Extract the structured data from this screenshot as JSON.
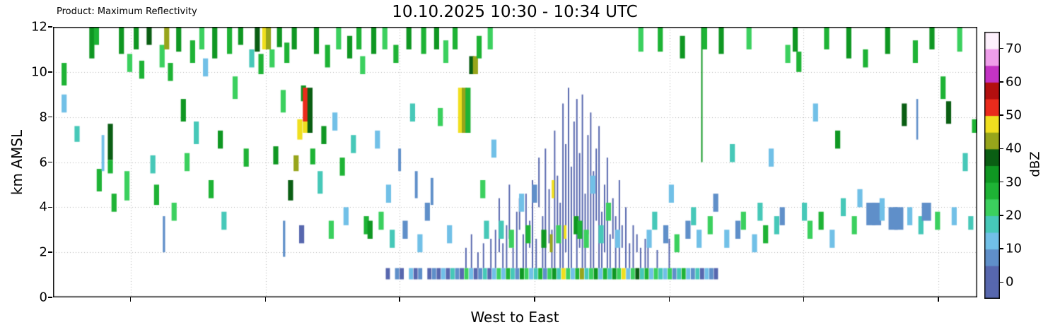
{
  "header": {
    "product_label": "Product: Maximum Reflectivity",
    "title": "10.10.2025 10:30 - 10:34 UTC"
  },
  "chart_data": {
    "type": "heatmap",
    "title": "10.10.2025 10:30 - 10:34 UTC",
    "product": "Product: Maximum Reflectivity",
    "xlabel": "West to East",
    "ylabel": "km AMSL",
    "ylim": [
      0,
      12
    ],
    "yticks": [
      0,
      2,
      4,
      6,
      8,
      10,
      12
    ],
    "grid": true,
    "x_gridlines_pct": [
      8.4,
      23.0,
      37.5,
      52.1,
      66.7,
      81.2,
      95.8
    ],
    "colorbar": {
      "label": "dBZ",
      "ticks": [
        0,
        10,
        20,
        30,
        40,
        50,
        60,
        70
      ],
      "range": [
        -5,
        75
      ]
    },
    "palette": [
      [
        0,
        "#5767ae"
      ],
      [
        5,
        "#5f8fc9"
      ],
      [
        10,
        "#71c0e7"
      ],
      [
        15,
        "#46c8b8"
      ],
      [
        20,
        "#3bd05e"
      ],
      [
        25,
        "#1eb335"
      ],
      [
        30,
        "#0f9722"
      ],
      [
        35,
        "#0a5e13"
      ],
      [
        40,
        "#97a51b"
      ],
      [
        45,
        "#f0df1f"
      ],
      [
        50,
        "#ea2b1c"
      ],
      [
        55,
        "#b30f0f"
      ],
      [
        60,
        "#c433c4"
      ],
      [
        65,
        "#ef9eea"
      ],
      [
        70,
        "#fdf0fc"
      ]
    ],
    "bars": [
      [
        1.2,
        9.4,
        10.4,
        25
      ],
      [
        1.2,
        8.2,
        9.0,
        10
      ],
      [
        2.6,
        6.9,
        7.6,
        15
      ],
      [
        4.2,
        10.6,
        12,
        30
      ],
      [
        4.7,
        11.2,
        12,
        25
      ],
      [
        5.0,
        4.7,
        5.7,
        25
      ],
      [
        5.4,
        5.6,
        7.2,
        10,
        0.3
      ],
      [
        6.2,
        6.1,
        7.7,
        35
      ],
      [
        6.2,
        5.5,
        6.1,
        25
      ],
      [
        6.6,
        3.8,
        4.6,
        25
      ],
      [
        7.4,
        10.8,
        12,
        30
      ],
      [
        8.0,
        4.3,
        5.6,
        20
      ],
      [
        8.3,
        10.0,
        10.8,
        20
      ],
      [
        9.0,
        11.0,
        12,
        30
      ],
      [
        9.6,
        9.7,
        10.5,
        25
      ],
      [
        10.4,
        11.2,
        12,
        35
      ],
      [
        10.8,
        5.5,
        6.3,
        15
      ],
      [
        11.2,
        4.1,
        5.0,
        25
      ],
      [
        11.8,
        10.2,
        11.2,
        20
      ],
      [
        12.0,
        2.0,
        3.6,
        5,
        0.25
      ],
      [
        12.3,
        11.0,
        12,
        40
      ],
      [
        12.7,
        9.6,
        10.4,
        25
      ],
      [
        13.1,
        3.4,
        4.2,
        20
      ],
      [
        13.6,
        10.9,
        12,
        30
      ],
      [
        14.1,
        7.8,
        8.8,
        30
      ],
      [
        14.5,
        5.6,
        6.4,
        20
      ],
      [
        15.1,
        10.4,
        11.4,
        25
      ],
      [
        15.5,
        6.8,
        7.8,
        15
      ],
      [
        16.1,
        11.0,
        12,
        20
      ],
      [
        16.5,
        9.8,
        10.6,
        10
      ],
      [
        17.1,
        4.4,
        5.2,
        25
      ],
      [
        17.5,
        10.6,
        12,
        30
      ],
      [
        18.1,
        6.6,
        7.4,
        30
      ],
      [
        18.5,
        3.0,
        3.8,
        15
      ],
      [
        19.1,
        10.8,
        12,
        25
      ],
      [
        19.7,
        8.8,
        9.8,
        20
      ],
      [
        20.3,
        11.2,
        12,
        30
      ],
      [
        20.9,
        5.8,
        6.6,
        25
      ],
      [
        21.5,
        10.2,
        11.0,
        15
      ],
      [
        22.1,
        10.9,
        12,
        35
      ],
      [
        22.5,
        9.9,
        10.8,
        25
      ],
      [
        22.9,
        11.0,
        12,
        45
      ],
      [
        23.3,
        11.0,
        12,
        40
      ],
      [
        23.7,
        10.2,
        11.0,
        20
      ],
      [
        24.1,
        5.9,
        6.7,
        30
      ],
      [
        24.5,
        11.1,
        12,
        30
      ],
      [
        24.9,
        8.2,
        9.2,
        20
      ],
      [
        25.0,
        1.8,
        3.4,
        5,
        0.25
      ],
      [
        25.3,
        10.4,
        11.3,
        25
      ],
      [
        25.7,
        4.3,
        5.2,
        35
      ],
      [
        26.1,
        11.0,
        12,
        30
      ],
      [
        26.3,
        5.6,
        6.3,
        40
      ],
      [
        26.7,
        7.0,
        7.9,
        45
      ],
      [
        26.9,
        2.4,
        3.2,
        0
      ],
      [
        27.1,
        8.7,
        9.4,
        30
      ],
      [
        27.3,
        7.8,
        9.3,
        52
      ],
      [
        27.3,
        7.3,
        7.8,
        45
      ],
      [
        27.8,
        7.3,
        9.3,
        35
      ],
      [
        28.1,
        5.9,
        6.6,
        25
      ],
      [
        28.5,
        10.8,
        12,
        30
      ],
      [
        28.9,
        4.6,
        5.6,
        15
      ],
      [
        29.3,
        6.8,
        7.6,
        30
      ],
      [
        29.7,
        10.2,
        11.2,
        25
      ],
      [
        30.1,
        2.6,
        3.4,
        20
      ],
      [
        30.5,
        7.4,
        8.2,
        10
      ],
      [
        30.9,
        11.0,
        12,
        20
      ],
      [
        31.3,
        5.4,
        6.2,
        25
      ],
      [
        31.7,
        3.2,
        4.0,
        10
      ],
      [
        32.1,
        10.6,
        11.6,
        30
      ],
      [
        32.5,
        6.4,
        7.2,
        15
      ],
      [
        33.1,
        11.0,
        12,
        25
      ],
      [
        33.5,
        9.9,
        10.7,
        20
      ],
      [
        33.9,
        2.8,
        3.6,
        25
      ],
      [
        34.3,
        2.6,
        3.4,
        30
      ],
      [
        34.7,
        10.8,
        12,
        30
      ],
      [
        35.1,
        6.6,
        7.4,
        10
      ],
      [
        35.5,
        3.0,
        3.8,
        20
      ],
      [
        35.9,
        11.0,
        12,
        20
      ],
      [
        36.3,
        4.2,
        5.0,
        10
      ],
      [
        36.7,
        2.2,
        3.0,
        15
      ],
      [
        37.1,
        10.4,
        11.2,
        25
      ],
      [
        37.5,
        5.6,
        6.6,
        5,
        0.3
      ],
      [
        38.1,
        2.6,
        3.4,
        5
      ],
      [
        38.5,
        11.0,
        12,
        30
      ],
      [
        38.9,
        7.8,
        8.6,
        15
      ],
      [
        39.3,
        4.4,
        5.6,
        5,
        0.3
      ],
      [
        39.7,
        2.0,
        2.8,
        10
      ],
      [
        40.1,
        10.8,
        12,
        25
      ],
      [
        40.5,
        3.4,
        4.2,
        5
      ],
      [
        41.0,
        4.1,
        5.3,
        5,
        0.3
      ],
      [
        41.5,
        11.0,
        12,
        30
      ],
      [
        41.9,
        7.6,
        8.4,
        20
      ],
      [
        42.5,
        10.4,
        11.4,
        20
      ],
      [
        42.9,
        2.4,
        3.2,
        10
      ],
      [
        43.5,
        11.0,
        12,
        25
      ],
      [
        44.1,
        7.3,
        9.3,
        45
      ],
      [
        44.5,
        7.3,
        9.3,
        40
      ],
      [
        44.9,
        7.3,
        9.3,
        25
      ],
      [
        45.3,
        9.9,
        10.7,
        35
      ],
      [
        45.7,
        9.9,
        10.7,
        40
      ],
      [
        46.1,
        10.6,
        11.6,
        25
      ],
      [
        46.5,
        4.4,
        5.2,
        20
      ],
      [
        46.9,
        2.6,
        3.4,
        15
      ],
      [
        47.3,
        11.0,
        12,
        20
      ],
      [
        47.7,
        6.2,
        7.0,
        10
      ],
      [
        48.5,
        2.6,
        3.4,
        15
      ],
      [
        49.6,
        2.2,
        3.0,
        20
      ],
      [
        50.7,
        3.8,
        4.6,
        10
      ],
      [
        51.4,
        2.4,
        3.2,
        25
      ],
      [
        52.1,
        4.2,
        5.0,
        5
      ],
      [
        53.1,
        2.2,
        3.0,
        30
      ],
      [
        53.9,
        2.0,
        2.8,
        40,
        0.3
      ],
      [
        54.1,
        4.4,
        5.2,
        45,
        0.3
      ],
      [
        54.7,
        2.4,
        3.2,
        20
      ],
      [
        55.4,
        2.6,
        3.2,
        45,
        0.3
      ],
      [
        56.6,
        2.8,
        3.6,
        30
      ],
      [
        57.0,
        2.6,
        3.4,
        25
      ],
      [
        57.7,
        2.2,
        3.0,
        20
      ],
      [
        58.4,
        4.6,
        5.4,
        10
      ],
      [
        59.3,
        2.4,
        3.2,
        15
      ],
      [
        60.1,
        3.4,
        4.2,
        20
      ],
      [
        61.1,
        2.2,
        3.0,
        10
      ],
      [
        63.6,
        10.9,
        12,
        20
      ],
      [
        64.5,
        2.2,
        3.0,
        10
      ],
      [
        65.1,
        3.0,
        3.8,
        15
      ],
      [
        65.7,
        10.9,
        12,
        25
      ],
      [
        66.3,
        2.4,
        3.2,
        5
      ],
      [
        66.9,
        4.2,
        5.0,
        10
      ],
      [
        67.5,
        2.0,
        2.8,
        20
      ],
      [
        68.1,
        10.6,
        11.6,
        30
      ],
      [
        68.7,
        2.6,
        3.4,
        5
      ],
      [
        69.3,
        3.2,
        4.0,
        15
      ],
      [
        69.9,
        2.2,
        3.0,
        10
      ],
      [
        70.2,
        6.0,
        12,
        30,
        0.15
      ],
      [
        70.5,
        11.0,
        12,
        25
      ],
      [
        71.1,
        2.8,
        3.6,
        20
      ],
      [
        71.7,
        3.8,
        4.6,
        5
      ],
      [
        72.3,
        10.8,
        12,
        30
      ],
      [
        72.9,
        2.2,
        3.0,
        10
      ],
      [
        73.5,
        6.0,
        6.8,
        15
      ],
      [
        74.1,
        2.6,
        3.4,
        5
      ],
      [
        74.7,
        3.0,
        3.8,
        20
      ],
      [
        75.3,
        11.0,
        12,
        20
      ],
      [
        75.9,
        2.0,
        2.8,
        10
      ],
      [
        76.5,
        3.4,
        4.2,
        15
      ],
      [
        77.1,
        2.4,
        3.2,
        25
      ],
      [
        77.7,
        5.8,
        6.6,
        10
      ],
      [
        78.3,
        2.8,
        3.6,
        15
      ],
      [
        78.9,
        3.2,
        4.0,
        5
      ],
      [
        79.5,
        10.4,
        11.2,
        20
      ],
      [
        80.3,
        10.9,
        12,
        30
      ],
      [
        80.7,
        10.0,
        10.9,
        25
      ],
      [
        81.3,
        3.4,
        4.2,
        15
      ],
      [
        81.9,
        2.6,
        3.4,
        20
      ],
      [
        82.5,
        7.8,
        8.6,
        10
      ],
      [
        83.1,
        3.0,
        3.8,
        25
      ],
      [
        83.7,
        11.0,
        12,
        25
      ],
      [
        84.3,
        2.2,
        3.0,
        10
      ],
      [
        84.9,
        6.6,
        7.4,
        30
      ],
      [
        85.5,
        3.6,
        4.4,
        15
      ],
      [
        86.1,
        10.6,
        12,
        30
      ],
      [
        86.7,
        2.8,
        3.6,
        20
      ],
      [
        87.3,
        4.0,
        4.8,
        10
      ],
      [
        87.9,
        10.2,
        11.0,
        25
      ],
      [
        88.5,
        3.2,
        4.2,
        5,
        1.0
      ],
      [
        89.1,
        3.2,
        4.2,
        5,
        1.0
      ],
      [
        89.7,
        3.4,
        4.4,
        10
      ],
      [
        90.3,
        10.8,
        12,
        30
      ],
      [
        90.9,
        3.0,
        4.0,
        5,
        1.0
      ],
      [
        91.5,
        3.0,
        4.0,
        5,
        1.0
      ],
      [
        92.1,
        7.6,
        8.6,
        35
      ],
      [
        92.7,
        3.2,
        4.0,
        10
      ],
      [
        93.3,
        10.4,
        11.4,
        25
      ],
      [
        93.5,
        7.0,
        8.8,
        5,
        0.2
      ],
      [
        93.9,
        2.8,
        3.6,
        15
      ],
      [
        94.5,
        3.4,
        4.2,
        5,
        1.0
      ],
      [
        95.1,
        11.0,
        12,
        30
      ],
      [
        95.7,
        3.0,
        3.8,
        20
      ],
      [
        96.3,
        8.8,
        9.8,
        25
      ],
      [
        96.9,
        7.7,
        8.7,
        35
      ],
      [
        97.5,
        3.2,
        4.0,
        10
      ],
      [
        98.1,
        10.9,
        12,
        20
      ],
      [
        98.7,
        5.6,
        6.4,
        15
      ],
      [
        99.3,
        3.0,
        3.6,
        15
      ],
      [
        99.7,
        7.3,
        7.9,
        25
      ]
    ],
    "spikes": [
      [
        44.6,
        1.3,
        2.2
      ],
      [
        45.2,
        1.3,
        2.8
      ],
      [
        45.9,
        1.3,
        2.0
      ],
      [
        46.5,
        1.3,
        2.4
      ],
      [
        47.3,
        1.3,
        2.6
      ],
      [
        47.8,
        1.3,
        3.0
      ],
      [
        48.2,
        2.0,
        4.4
      ],
      [
        48.6,
        1.3,
        2.4
      ],
      [
        49.0,
        1.3,
        3.2
      ],
      [
        49.3,
        2.6,
        5.0
      ],
      [
        49.7,
        1.3,
        2.2
      ],
      [
        50.1,
        1.3,
        3.8
      ],
      [
        50.4,
        3.0,
        4.4
      ],
      [
        50.8,
        1.3,
        2.8
      ],
      [
        51.1,
        1.3,
        4.6
      ],
      [
        51.5,
        2.2,
        3.4
      ],
      [
        51.8,
        1.3,
        5.2
      ],
      [
        52.2,
        1.3,
        2.6
      ],
      [
        52.5,
        4.0,
        6.2
      ],
      [
        52.9,
        1.3,
        3.6
      ],
      [
        53.2,
        1.3,
        6.6
      ],
      [
        53.6,
        2.4,
        4.8
      ],
      [
        53.9,
        1.3,
        3.0
      ],
      [
        54.2,
        1.3,
        7.4
      ],
      [
        54.5,
        3.2,
        5.4
      ],
      [
        54.8,
        1.3,
        4.2
      ],
      [
        55.1,
        1.3,
        8.6
      ],
      [
        55.4,
        2.0,
        6.8
      ],
      [
        55.7,
        1.3,
        9.3
      ],
      [
        56.0,
        1.3,
        5.8
      ],
      [
        56.3,
        3.6,
        7.8
      ],
      [
        56.6,
        1.3,
        8.8
      ],
      [
        56.9,
        2.2,
        6.4
      ],
      [
        57.2,
        1.3,
        9.0
      ],
      [
        57.5,
        1.3,
        4.6
      ],
      [
        57.8,
        2.8,
        7.2
      ],
      [
        58.1,
        1.3,
        8.2
      ],
      [
        58.4,
        1.3,
        5.6
      ],
      [
        58.7,
        3.4,
        6.6
      ],
      [
        59.0,
        1.3,
        7.6
      ],
      [
        59.3,
        1.3,
        3.8
      ],
      [
        59.6,
        2.0,
        5.0
      ],
      [
        59.9,
        1.3,
        6.2
      ],
      [
        60.2,
        1.3,
        2.8
      ],
      [
        60.5,
        2.6,
        4.4
      ],
      [
        60.8,
        1.3,
        3.6
      ],
      [
        61.2,
        1.3,
        5.2
      ],
      [
        61.5,
        2.2,
        3.2
      ],
      [
        61.9,
        1.3,
        4.0
      ],
      [
        62.3,
        1.3,
        2.4
      ],
      [
        62.7,
        1.3,
        3.2
      ],
      [
        63.1,
        2.0,
        2.8
      ],
      [
        63.5,
        1.3,
        2.2
      ],
      [
        64.0,
        1.3,
        2.6
      ],
      [
        64.3,
        1.3,
        2.4
      ],
      [
        65.3,
        1.3,
        2.1
      ],
      [
        66.6,
        1.3,
        2.6
      ]
    ],
    "spike_value": 2,
    "bottom_band": {
      "x_start": 36,
      "x_step": 0.5,
      "cell_width": 0.45,
      "y0": 0.8,
      "y1": 1.3,
      "values": [
        0,
        null,
        5,
        0,
        null,
        10,
        0,
        5,
        null,
        0,
        5,
        0,
        10,
        0,
        15,
        5,
        0,
        20,
        10,
        0,
        5,
        15,
        0,
        10,
        20,
        10,
        25,
        15,
        5,
        30,
        20,
        10,
        15,
        25,
        5,
        20,
        30,
        15,
        45,
        20,
        10,
        25,
        40,
        15,
        20,
        30,
        10,
        25,
        15,
        30,
        20,
        45,
        10,
        20,
        35,
        15,
        25,
        10,
        20,
        15,
        10,
        20,
        5,
        15,
        25,
        10,
        5,
        15,
        0,
        10,
        5,
        0
      ]
    }
  }
}
